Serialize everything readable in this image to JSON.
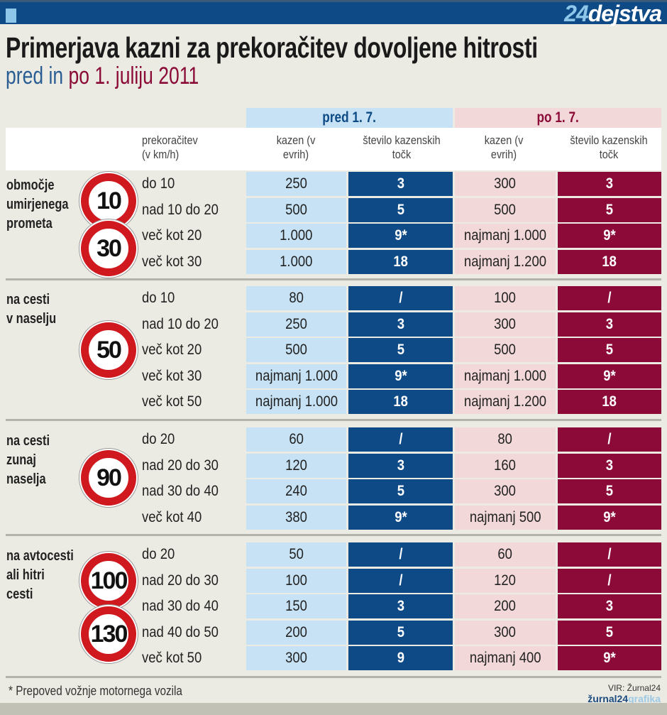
{
  "brand": {
    "num": "24",
    "word": "dejstva"
  },
  "title": "Primerjava kazni za prekoračitev dovoljene hitrosti",
  "subtitle": {
    "part1": "pred in ",
    "part2": "po 1. juliju 2011"
  },
  "periods": {
    "before": "pred 1. 7.",
    "after": "po 1. 7."
  },
  "columns": {
    "excess": "prekoračitev (v km/h)",
    "fine": "kazen (v evrih)",
    "points": "število kazenskih točk"
  },
  "colors": {
    "header": "#0d4a86",
    "before_light": "#c6e2f4",
    "before_dark": "#0d4a86",
    "after_light": "#f2d8d8",
    "after_dark": "#8b0a38",
    "sign_ring": "#d0191f"
  },
  "groups": [
    {
      "label": [
        "območje",
        "umirjenega",
        "prometa"
      ],
      "signs": [
        "10",
        "30"
      ],
      "rows": [
        [
          "do 10",
          "250",
          "3",
          "300",
          "3"
        ],
        [
          "nad 10 do 20",
          "500",
          "5",
          "500",
          "5"
        ],
        [
          "več kot 20",
          "1.000",
          "9*",
          "najmanj 1.000",
          "9*"
        ],
        [
          "več kot 30",
          "1.000",
          "18",
          "najmanj 1.200",
          "18"
        ]
      ]
    },
    {
      "label": [
        "na cesti",
        "v naselju"
      ],
      "signs": [
        "50"
      ],
      "rows": [
        [
          "do 10",
          "80",
          "/",
          "100",
          "/"
        ],
        [
          "nad 10 do 20",
          "250",
          "3",
          "300",
          "3"
        ],
        [
          "več kot 20",
          "500",
          "5",
          "500",
          "5"
        ],
        [
          "več kot 30",
          "najmanj 1.000",
          "9*",
          "najmanj 1.000",
          "9*"
        ],
        [
          "več kot 50",
          "najmanj 1.000",
          "18",
          "najmanj 1.200",
          "18"
        ]
      ]
    },
    {
      "label": [
        "na cesti",
        "zunaj",
        "naselja"
      ],
      "signs": [
        "90"
      ],
      "rows": [
        [
          "do 20",
          "60",
          "/",
          "80",
          "/"
        ],
        [
          "nad 20 do 30",
          "120",
          "3",
          "160",
          "3"
        ],
        [
          "nad 30 do 40",
          "240",
          "5",
          "300",
          "5"
        ],
        [
          "več kot 40",
          "380",
          "9*",
          "najmanj 500",
          "9*"
        ]
      ]
    },
    {
      "label": [
        "na avtocesti",
        "ali hitri",
        "cesti"
      ],
      "signs": [
        "100",
        "130"
      ],
      "rows": [
        [
          "do 20",
          "50",
          "/",
          "60",
          "/"
        ],
        [
          "nad 20 do 30",
          "100",
          "/",
          "120",
          "/"
        ],
        [
          "nad 30 do 40",
          "150",
          "3",
          "200",
          "3"
        ],
        [
          "nad 40 do 50",
          "200",
          "5",
          "300",
          "5"
        ],
        [
          "več kot 50",
          "300",
          "9",
          "najmanj 400",
          "9*"
        ]
      ]
    }
  ],
  "footnote": "* Prepoved vožnje motornega vozila",
  "source": "VIR: Žurnal24",
  "credit": {
    "a": "žurnal24",
    "b": "grafika"
  }
}
